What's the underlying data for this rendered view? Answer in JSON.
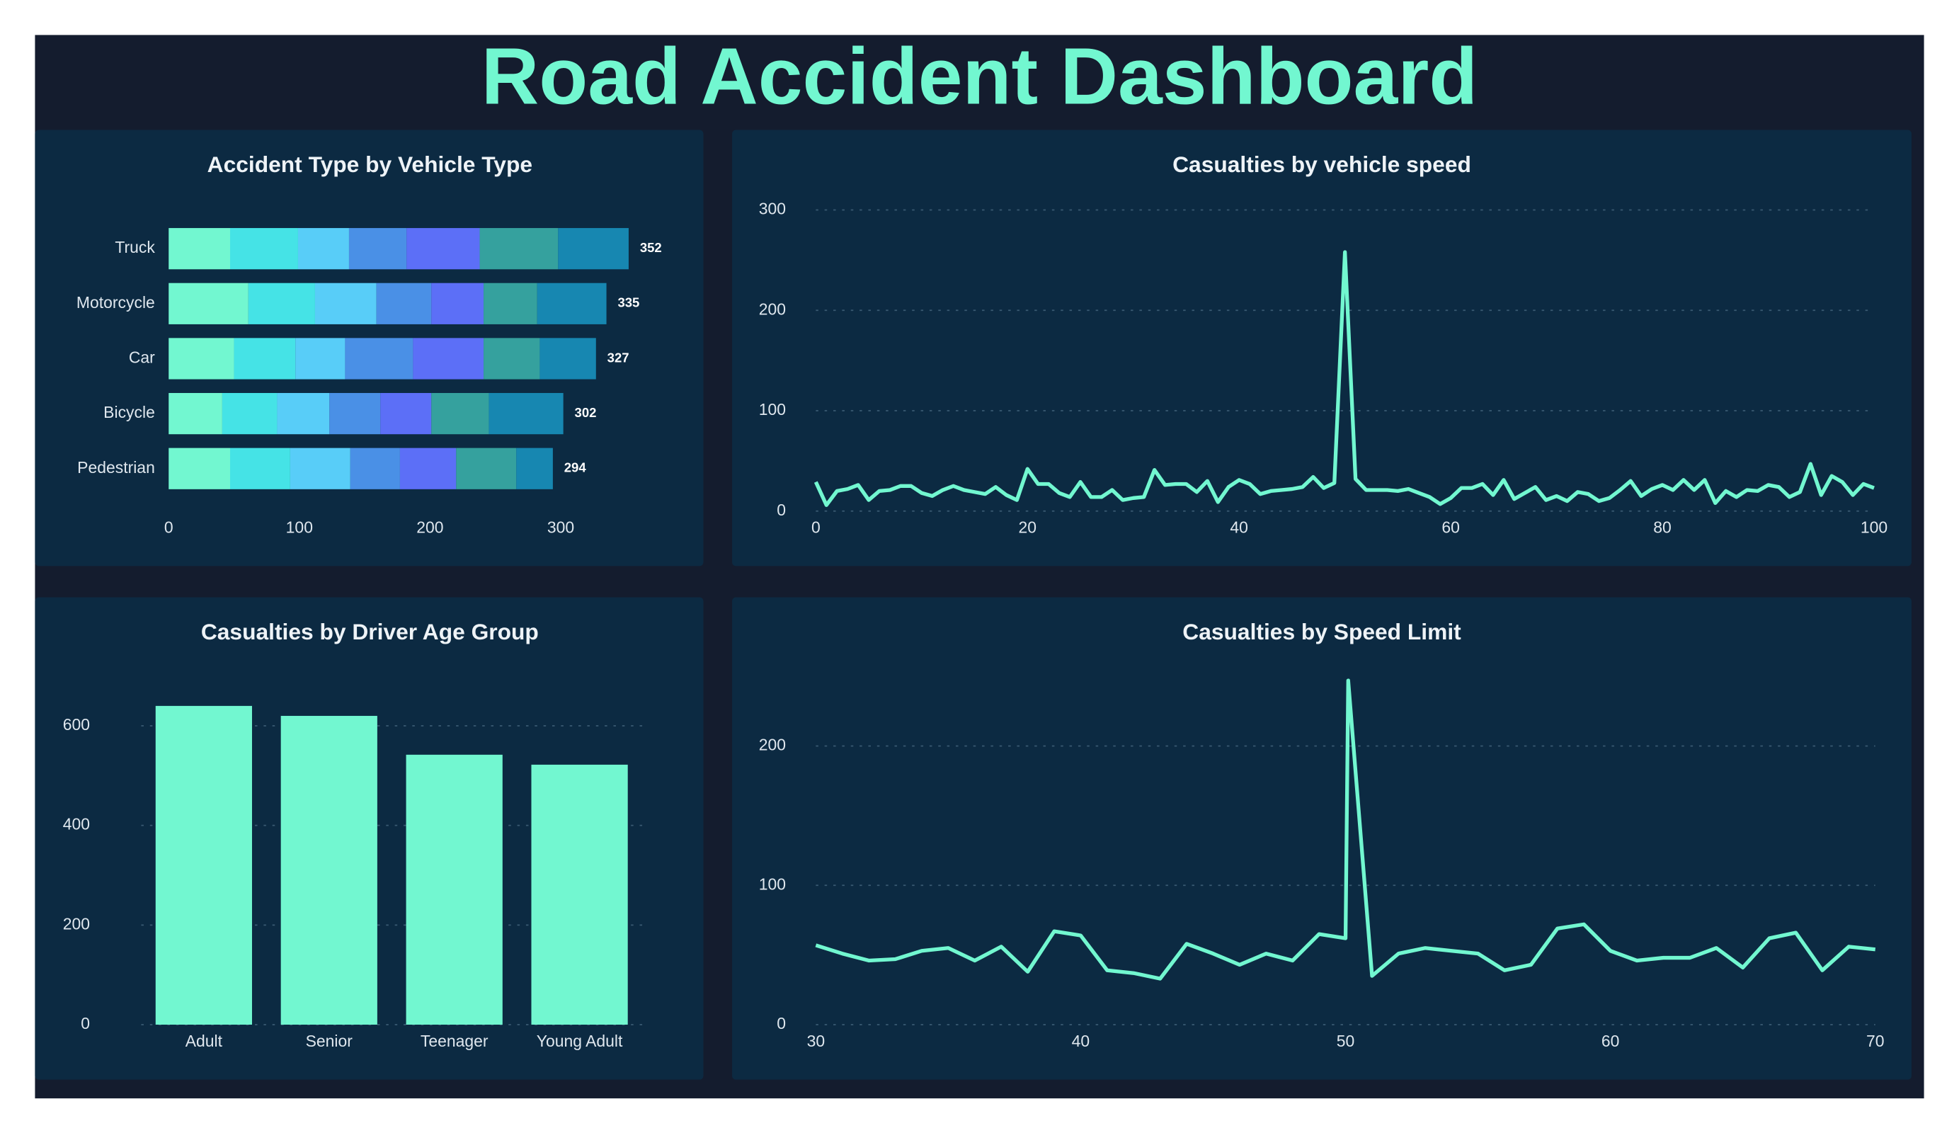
{
  "title": "Road Accident Dashboard",
  "chart_data": [
    {
      "type": "bar",
      "orientation": "horizontal",
      "stacked": true,
      "title": "Accident Type by Vehicle Type",
      "categories": [
        "Truck",
        "Motorcycle",
        "Car",
        "Bicycle",
        "Pedestrian"
      ],
      "series": [
        {
          "color": "#72f7d0",
          "values": [
            47,
            61,
            50,
            41,
            47
          ]
        },
        {
          "color": "#45e3e6",
          "values": [
            52,
            51,
            47,
            42,
            46
          ]
        },
        {
          "color": "#58cdf8",
          "values": [
            39,
            47,
            38,
            40,
            46
          ]
        },
        {
          "color": "#4a90e6",
          "values": [
            44,
            42,
            52,
            39,
            38
          ]
        },
        {
          "color": "#5c6ff7",
          "values": [
            56,
            40,
            54,
            39,
            43
          ]
        },
        {
          "color": "#35a19e",
          "values": [
            60,
            41,
            43,
            44,
            46
          ]
        },
        {
          "color": "#1787b1",
          "values": [
            54,
            53,
            43,
            57,
            28
          ]
        }
      ],
      "totals": [
        352,
        335,
        327,
        302,
        294
      ],
      "xlim": [
        0,
        370
      ],
      "xticks": [
        0,
        100,
        200,
        300
      ],
      "grid": false
    },
    {
      "type": "line",
      "title": "Casualties by vehicle speed",
      "color": "#72f7d0",
      "x": [
        0,
        1,
        2,
        3,
        4,
        5,
        6,
        7,
        8,
        9,
        10,
        11,
        12,
        13,
        14,
        15,
        16,
        17,
        18,
        19,
        20,
        21,
        22,
        23,
        24,
        25,
        26,
        27,
        28,
        29,
        30,
        31,
        32,
        33,
        34,
        35,
        36,
        37,
        38,
        39,
        40,
        41,
        42,
        43,
        44,
        45,
        46,
        47,
        48,
        49,
        50,
        51,
        52,
        53,
        54,
        55,
        56,
        57,
        58,
        59,
        60,
        61,
        62,
        63,
        64,
        65,
        66,
        67,
        68,
        69,
        70,
        71,
        72,
        73,
        74,
        75,
        76,
        77,
        78,
        79,
        80,
        81,
        82,
        83,
        84,
        85,
        86,
        87,
        88,
        89,
        90,
        91,
        92,
        93,
        94,
        95,
        96,
        97,
        98,
        99,
        100
      ],
      "values": [
        29,
        6,
        20,
        22,
        26,
        11,
        20,
        21,
        25,
        25,
        18,
        15,
        21,
        25,
        21,
        19,
        17,
        24,
        16,
        11,
        42,
        27,
        27,
        18,
        14,
        29,
        14,
        14,
        21,
        11,
        13,
        14,
        41,
        26,
        27,
        27,
        19,
        30,
        9,
        24,
        31,
        27,
        17,
        20,
        21,
        22,
        24,
        34,
        23,
        28,
        258,
        32,
        21,
        21,
        21,
        20,
        22,
        18,
        14,
        7,
        13,
        23,
        23,
        27,
        16,
        31,
        12,
        18,
        24,
        11,
        15,
        10,
        19,
        17,
        10,
        13,
        21,
        30,
        15,
        22,
        26,
        21,
        31,
        21,
        31,
        8,
        20,
        14,
        21,
        20,
        26,
        24,
        14,
        19,
        47,
        16,
        35,
        29,
        16,
        27,
        23
      ],
      "xlim": [
        0,
        100
      ],
      "xticks": [
        0,
        20,
        40,
        60,
        80,
        100
      ],
      "ylim": [
        0,
        310
      ],
      "yticks": [
        0,
        100,
        200,
        300
      ],
      "grid": true
    },
    {
      "type": "bar",
      "title": "Casualties by Driver Age Group",
      "color": "#72f7d0",
      "categories": [
        "Adult",
        "Senior",
        "Teenager",
        "Young Adult"
      ],
      "values": [
        640,
        620,
        542,
        522
      ],
      "ylim": [
        0,
        700
      ],
      "yticks": [
        0,
        200,
        400,
        600
      ],
      "grid": true
    },
    {
      "type": "line",
      "title": "Casualties by Speed Limit",
      "color": "#72f7d0",
      "x": [
        30,
        31,
        32,
        33,
        34,
        35,
        36,
        37,
        38,
        39,
        40,
        41,
        42,
        43,
        44,
        45,
        46,
        47,
        48,
        49,
        50,
        50.1,
        51,
        52,
        53,
        54,
        55,
        56,
        57,
        58,
        59,
        60,
        61,
        62,
        63,
        64,
        65,
        66,
        67,
        68,
        69,
        70
      ],
      "values": [
        57,
        51,
        46,
        47,
        53,
        55,
        46,
        56,
        38,
        67,
        64,
        39,
        37,
        33,
        58,
        51,
        43,
        51,
        46,
        65,
        62,
        247,
        35,
        51,
        55,
        53,
        51,
        39,
        43,
        69,
        72,
        53,
        46,
        48,
        48,
        55,
        41,
        62,
        66,
        39,
        56,
        54
      ],
      "xlim": [
        30,
        70
      ],
      "xticks": [
        30,
        40,
        50,
        60,
        70
      ],
      "ylim": [
        0,
        252
      ],
      "yticks": [
        0,
        100,
        200
      ],
      "grid": true
    }
  ]
}
